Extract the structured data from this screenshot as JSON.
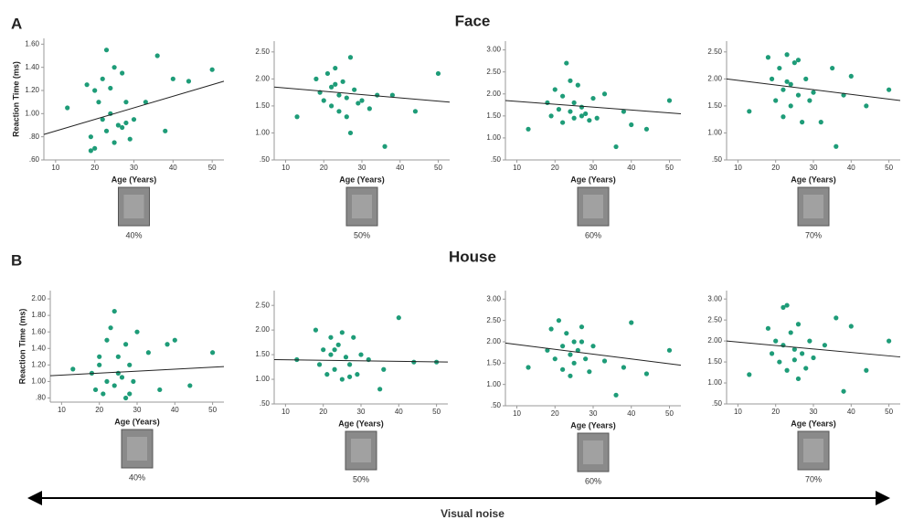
{
  "panels": [
    {
      "letter": "A",
      "title": "Face"
    },
    {
      "letter": "B",
      "title": "House"
    }
  ],
  "footer": "Visual noise",
  "chart_data": [
    {
      "type": "scatter",
      "ylabel": "Reaction Time (ms)",
      "xlabel": "Age (Years)",
      "caption": "40%",
      "color": "#1e9c78",
      "xlim": [
        7,
        53
      ],
      "ylim": [
        0.6,
        1.65
      ],
      "xticks": [
        10,
        20,
        30,
        40,
        50
      ],
      "yticks": [
        {
          "value": 0.6,
          "label": ".60"
        },
        {
          "value": 0.8,
          "label": ".80"
        },
        {
          "value": 1.0,
          "label": "1.00"
        },
        {
          "value": 1.2,
          "label": "1.20"
        },
        {
          "value": 1.4,
          "label": "1.40"
        },
        {
          "value": 1.6,
          "label": "1.60"
        }
      ],
      "x": [
        13,
        18,
        19,
        20,
        20,
        21,
        22,
        22,
        23,
        23,
        24,
        25,
        25,
        26,
        27,
        28,
        28,
        30,
        33,
        36,
        38,
        40,
        44,
        50,
        19,
        24,
        27,
        29
      ],
      "values": [
        1.05,
        1.25,
        0.8,
        0.7,
        1.2,
        1.1,
        0.95,
        1.3,
        1.55,
        0.85,
        1.0,
        1.4,
        0.75,
        0.9,
        1.35,
        0.92,
        1.1,
        0.95,
        1.1,
        1.5,
        0.85,
        1.3,
        1.28,
        1.38,
        0.68,
        1.22,
        0.88,
        0.78
      ],
      "fit": {
        "x": [
          7,
          53
        ],
        "y": [
          0.82,
          1.28
        ]
      }
    },
    {
      "type": "scatter",
      "xlabel": "Age (Years)",
      "caption": "50%",
      "color": "#1e9c78",
      "xlim": [
        7,
        53
      ],
      "ylim": [
        0.5,
        2.7
      ],
      "xticks": [
        10,
        20,
        30,
        40,
        50
      ],
      "yticks": [
        {
          "value": 0.5,
          "label": ".50"
        },
        {
          "value": 1.0,
          "label": "1.00"
        },
        {
          "value": 1.5,
          "label": "1.50"
        },
        {
          "value": 2.0,
          "label": "2.00"
        },
        {
          "value": 2.5,
          "label": "2.50"
        }
      ],
      "x": [
        13,
        18,
        19,
        20,
        21,
        22,
        22,
        23,
        24,
        24,
        25,
        26,
        27,
        27,
        28,
        29,
        30,
        32,
        34,
        36,
        38,
        44,
        50,
        23,
        26
      ],
      "values": [
        1.3,
        2.0,
        1.75,
        1.6,
        2.1,
        1.5,
        1.85,
        2.2,
        1.7,
        1.4,
        1.95,
        1.65,
        2.4,
        1.0,
        1.8,
        1.55,
        1.6,
        1.45,
        1.7,
        0.75,
        1.7,
        1.4,
        2.1,
        1.9,
        1.3
      ],
      "fit": {
        "x": [
          7,
          53
        ],
        "y": [
          1.85,
          1.57
        ]
      }
    },
    {
      "type": "scatter",
      "xlabel": "Age (Years)",
      "caption": "60%",
      "color": "#1e9c78",
      "xlim": [
        7,
        53
      ],
      "ylim": [
        0.5,
        3.2
      ],
      "xticks": [
        10,
        20,
        30,
        40,
        50
      ],
      "yticks": [
        {
          "value": 0.5,
          "label": ".50"
        },
        {
          "value": 1.0,
          "label": "1.00"
        },
        {
          "value": 1.5,
          "label": "1.50"
        },
        {
          "value": 2.0,
          "label": "2.00"
        },
        {
          "value": 2.5,
          "label": "2.50"
        },
        {
          "value": 3.0,
          "label": "3.00"
        }
      ],
      "x": [
        13,
        18,
        19,
        20,
        21,
        22,
        22,
        23,
        24,
        25,
        25,
        26,
        27,
        28,
        29,
        30,
        31,
        33,
        36,
        38,
        40,
        44,
        50,
        24,
        27
      ],
      "values": [
        1.2,
        1.8,
        1.5,
        2.1,
        1.65,
        1.35,
        1.95,
        2.7,
        1.6,
        1.8,
        1.45,
        2.2,
        1.7,
        1.55,
        1.4,
        1.9,
        1.45,
        2.0,
        0.8,
        1.6,
        1.3,
        1.2,
        1.85,
        2.3,
        1.5
      ],
      "fit": {
        "x": [
          7,
          53
        ],
        "y": [
          1.85,
          1.55
        ]
      }
    },
    {
      "type": "scatter",
      "xlabel": "Age (Years)",
      "caption": "70%",
      "color": "#1e9c78",
      "xlim": [
        7,
        53
      ],
      "ylim": [
        0.5,
        2.7
      ],
      "xticks": [
        10,
        20,
        30,
        40,
        50
      ],
      "yticks": [
        {
          "value": 0.5,
          "label": ".50"
        },
        {
          "value": 1.0,
          "label": "1.00"
        },
        {
          "value": 1.5,
          "label": "1.50"
        },
        {
          "value": 2.0,
          "label": "2.00"
        },
        {
          "value": 2.5,
          "label": "2.50"
        }
      ],
      "x": [
        13,
        18,
        19,
        20,
        21,
        22,
        22,
        23,
        24,
        24,
        25,
        26,
        27,
        28,
        29,
        30,
        32,
        35,
        36,
        38,
        40,
        44,
        50,
        23,
        26
      ],
      "values": [
        1.4,
        2.4,
        2.0,
        1.6,
        2.2,
        1.8,
        1.3,
        2.45,
        1.9,
        1.5,
        2.3,
        1.7,
        1.2,
        2.0,
        1.6,
        1.75,
        1.2,
        2.2,
        0.75,
        1.7,
        2.05,
        1.5,
        1.8,
        1.95,
        2.35
      ],
      "fit": {
        "x": [
          7,
          53
        ],
        "y": [
          2.0,
          1.6
        ]
      }
    },
    {
      "type": "scatter",
      "ylabel": "Reaction Time (ms)",
      "xlabel": "Age (Years)",
      "caption": "40%",
      "color": "#1e9c78",
      "xlim": [
        7,
        53
      ],
      "ylim": [
        0.75,
        2.1
      ],
      "xticks": [
        10,
        20,
        30,
        40,
        50
      ],
      "yticks": [
        {
          "value": 0.8,
          "label": ".80"
        },
        {
          "value": 1.0,
          "label": "1.00"
        },
        {
          "value": 1.2,
          "label": "1.20"
        },
        {
          "value": 1.4,
          "label": "1.40"
        },
        {
          "value": 1.6,
          "label": "1.60"
        },
        {
          "value": 1.8,
          "label": "1.80"
        },
        {
          "value": 2.0,
          "label": "2.00"
        }
      ],
      "x": [
        13,
        18,
        19,
        20,
        21,
        22,
        22,
        23,
        24,
        24,
        25,
        26,
        27,
        27,
        28,
        29,
        30,
        33,
        36,
        38,
        40,
        44,
        50,
        20,
        25,
        28
      ],
      "values": [
        1.15,
        1.1,
        0.9,
        1.2,
        0.85,
        1.5,
        1.0,
        1.65,
        1.85,
        0.95,
        1.3,
        1.05,
        1.45,
        0.8,
        1.2,
        1.0,
        1.6,
        1.35,
        0.9,
        1.45,
        1.5,
        0.95,
        1.35,
        1.3,
        1.1,
        0.85
      ],
      "fit": {
        "x": [
          7,
          53
        ],
        "y": [
          1.07,
          1.18
        ]
      }
    },
    {
      "type": "scatter",
      "xlabel": "Age (Years)",
      "caption": "50%",
      "color": "#1e9c78",
      "xlim": [
        7,
        53
      ],
      "ylim": [
        0.5,
        2.8
      ],
      "xticks": [
        10,
        20,
        30,
        40,
        50
      ],
      "yticks": [
        {
          "value": 0.5,
          "label": ".50"
        },
        {
          "value": 1.0,
          "label": "1.00"
        },
        {
          "value": 1.5,
          "label": "1.50"
        },
        {
          "value": 2.0,
          "label": "2.00"
        },
        {
          "value": 2.5,
          "label": "2.50"
        }
      ],
      "x": [
        13,
        18,
        19,
        20,
        21,
        22,
        22,
        23,
        24,
        25,
        25,
        26,
        27,
        28,
        29,
        30,
        32,
        35,
        36,
        40,
        44,
        50,
        23,
        27
      ],
      "values": [
        1.4,
        2.0,
        1.3,
        1.6,
        1.1,
        1.85,
        1.5,
        1.2,
        1.7,
        1.95,
        1.0,
        1.45,
        1.3,
        1.85,
        1.1,
        1.5,
        1.4,
        0.8,
        1.2,
        2.25,
        1.35,
        1.35,
        1.6,
        1.05
      ],
      "fit": {
        "x": [
          7,
          53
        ],
        "y": [
          1.4,
          1.35
        ]
      }
    },
    {
      "type": "scatter",
      "xlabel": "Age (Years)",
      "caption": "60%",
      "color": "#1e9c78",
      "xlim": [
        7,
        53
      ],
      "ylim": [
        0.5,
        3.2
      ],
      "xticks": [
        10,
        20,
        30,
        40,
        50
      ],
      "yticks": [
        {
          "value": 0.5,
          "label": ".50"
        },
        {
          "value": 1.0,
          "label": "1.00"
        },
        {
          "value": 1.5,
          "label": "1.50"
        },
        {
          "value": 2.0,
          "label": "2.00"
        },
        {
          "value": 2.5,
          "label": "2.50"
        },
        {
          "value": 3.0,
          "label": "3.00"
        }
      ],
      "x": [
        13,
        18,
        19,
        20,
        21,
        22,
        22,
        23,
        24,
        25,
        25,
        26,
        27,
        28,
        29,
        30,
        33,
        36,
        38,
        40,
        44,
        50,
        24,
        27
      ],
      "values": [
        1.4,
        1.8,
        2.3,
        1.6,
        2.5,
        1.9,
        1.35,
        2.2,
        1.7,
        2.0,
        1.5,
        1.8,
        2.35,
        1.6,
        1.3,
        1.9,
        1.55,
        0.75,
        1.4,
        2.45,
        1.25,
        1.8,
        1.2,
        2.0
      ],
      "fit": {
        "x": [
          7,
          53
        ],
        "y": [
          1.97,
          1.45
        ]
      }
    },
    {
      "type": "scatter",
      "xlabel": "Age (Years)",
      "caption": "70%",
      "color": "#1e9c78",
      "xlim": [
        7,
        53
      ],
      "ylim": [
        0.5,
        3.2
      ],
      "xticks": [
        10,
        20,
        30,
        40,
        50
      ],
      "yticks": [
        {
          "value": 0.5,
          "label": ".50"
        },
        {
          "value": 1.0,
          "label": "1.00"
        },
        {
          "value": 1.5,
          "label": "1.50"
        },
        {
          "value": 2.0,
          "label": "2.00"
        },
        {
          "value": 2.5,
          "label": "2.50"
        },
        {
          "value": 3.0,
          "label": "3.00"
        }
      ],
      "x": [
        13,
        18,
        19,
        20,
        21,
        22,
        22,
        23,
        24,
        25,
        25,
        26,
        27,
        28,
        29,
        30,
        33,
        36,
        38,
        40,
        44,
        50,
        23,
        26
      ],
      "values": [
        1.2,
        2.3,
        1.7,
        2.0,
        1.5,
        2.8,
        1.9,
        1.3,
        2.2,
        1.8,
        1.55,
        2.4,
        1.7,
        1.35,
        2.0,
        1.6,
        1.9,
        2.55,
        0.8,
        2.35,
        1.3,
        2.0,
        2.85,
        1.1
      ],
      "fit": {
        "x": [
          7,
          53
        ],
        "y": [
          2.0,
          1.62
        ]
      }
    }
  ]
}
